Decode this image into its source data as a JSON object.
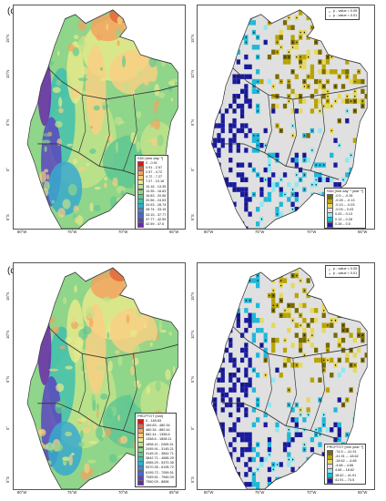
{
  "panels": [
    {
      "label": "(c)"
    },
    {
      "label": "(d)"
    }
  ],
  "lat_ticks": [
    "15°N",
    "10°N",
    "5°N",
    "0°",
    "5°S"
  ],
  "lon_ticks": [
    "80°W",
    "75°W",
    "70°W",
    "65°W"
  ],
  "significance": {
    "p005": "p - value < 0.05",
    "p001": "p - value < 0.01"
  },
  "legend_c_left": {
    "title": "SDII [mm day⁻¹]",
    "classes": [
      {
        "label": "0 - 0.91",
        "color": "#d7191c"
      },
      {
        "label": "0.91 - 2.57",
        "color": "#e8663a"
      },
      {
        "label": "2.57 - 4.72",
        "color": "#f2a35f"
      },
      {
        "label": "4.72 - 7.27",
        "color": "#f8cf82"
      },
      {
        "label": "7.27 - 10.16",
        "color": "#e8e98a"
      },
      {
        "label": "10.16 - 13.35",
        "color": "#bfe38a"
      },
      {
        "label": "13.35 - 16.83",
        "color": "#8fd58a"
      },
      {
        "label": "16.83 - 20.56",
        "color": "#5fc792"
      },
      {
        "label": "20.56 - 24.53",
        "color": "#3fbfae"
      },
      {
        "label": "24.53 - 28.74",
        "color": "#3aa9cc"
      },
      {
        "label": "28.74 - 33.15",
        "color": "#3f88d4"
      },
      {
        "label": "33.15 - 37.77",
        "color": "#4d66cc"
      },
      {
        "label": "37.77 - 42.59",
        "color": "#5b45bf"
      },
      {
        "label": "42.59 - 47.6",
        "color": "#6a2aa8"
      }
    ]
  },
  "legend_c_right": {
    "title": "SDII [mm day⁻¹ year⁻¹]",
    "classes": [
      {
        "label": "-0.5 – -0.28",
        "color": "#7a6a00"
      },
      {
        "label": "-0.28 – -0.13",
        "color": "#b8a400"
      },
      {
        "label": "-0.13 – -0.03",
        "color": "#e6d85a"
      },
      {
        "label": "-0.03 – 0.03",
        "color": "#e0e0e0"
      },
      {
        "label": "0.03 – 0.13",
        "color": "#8fe8f2"
      },
      {
        "label": "0.13 – 0.28",
        "color": "#1fb8d8"
      },
      {
        "label": "0.28 – 0.5",
        "color": "#1a1aa0"
      }
    ]
  },
  "legend_d_left": {
    "title": "PRCPTOT [mm]",
    "classes": [
      {
        "label": "0 - 169.83",
        "color": "#d7191c"
      },
      {
        "label": "169.83 - 480.34",
        "color": "#e8663a"
      },
      {
        "label": "480.34 - 882.44",
        "color": "#f2a35f"
      },
      {
        "label": "882.44 - 1358.6",
        "color": "#f8cf82"
      },
      {
        "label": "1358.6 - 1898.11",
        "color": "#e8e98a"
      },
      {
        "label": "1898.11 - 2495.91",
        "color": "#bfe38a"
      },
      {
        "label": "2495.91 - 3145.21",
        "color": "#8fd58a"
      },
      {
        "label": "3145.21 - 3842.71",
        "color": "#5fc792"
      },
      {
        "label": "3842.71 - 4585.29",
        "color": "#3fbfae"
      },
      {
        "label": "4585.29 - 5370.35",
        "color": "#3aa9cc"
      },
      {
        "label": "5370.35 - 6195.72",
        "color": "#3f88d4"
      },
      {
        "label": "6195.72 - 7059.51",
        "color": "#4d66cc"
      },
      {
        "label": "7059.51 - 7960.09",
        "color": "#5b45bf"
      },
      {
        "label": "7960.09 - 8896",
        "color": "#6a2aa8"
      }
    ]
  },
  "legend_d_right": {
    "title": "PRCPTOT [mm year⁻¹]",
    "classes": [
      {
        "label": "-74.5 – -41.91",
        "color": "#7a6a00"
      },
      {
        "label": "-41.91 – -18.62",
        "color": "#b8a400"
      },
      {
        "label": "-18.62 – -4.66",
        "color": "#e6d85a"
      },
      {
        "label": "-4.66 – 4.66",
        "color": "#e0e0e0"
      },
      {
        "label": "4.66 – 18.62",
        "color": "#8fe8f2"
      },
      {
        "label": "18.62 – 41.91",
        "color": "#1fb8d8"
      },
      {
        "label": "41.91 – 74.5",
        "color": "#1a1aa0"
      }
    ]
  }
}
